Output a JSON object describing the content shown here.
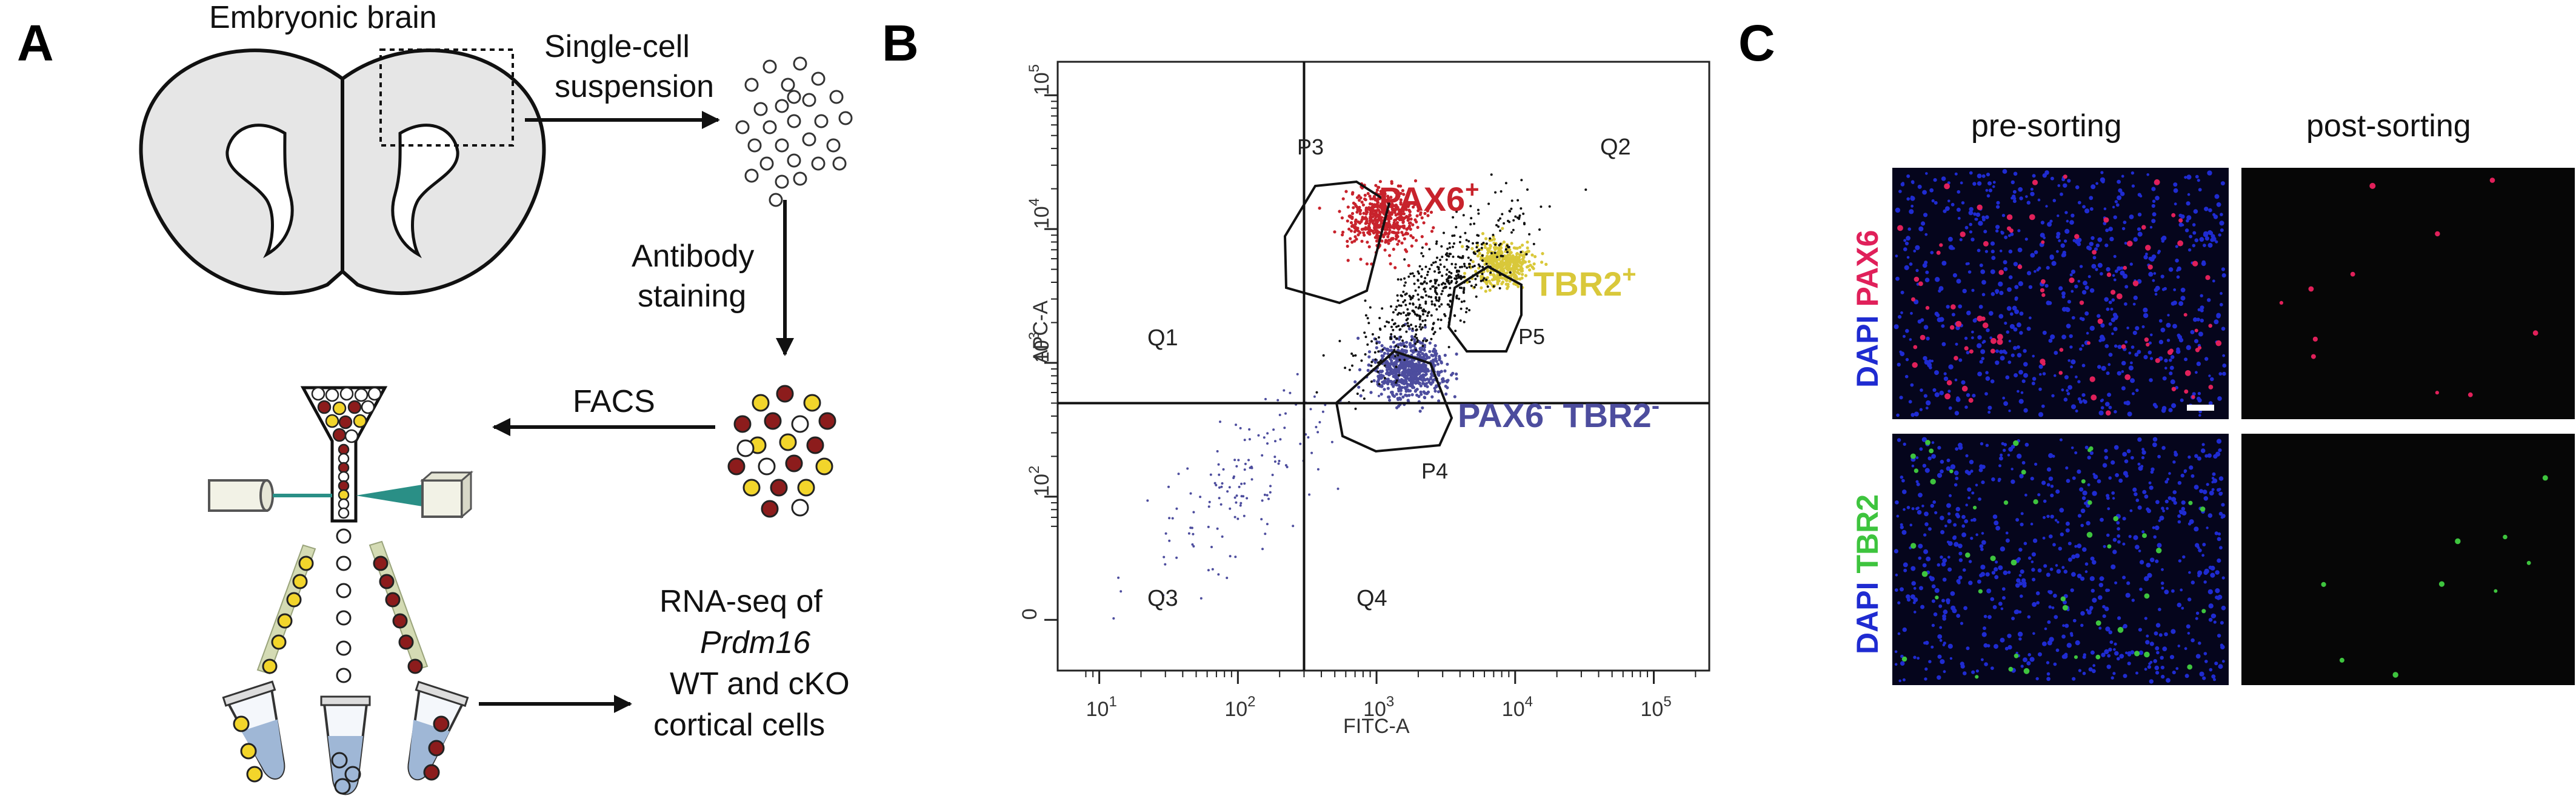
{
  "panels": {
    "a": {
      "letter": "A",
      "brain_label": "Embryonic brain",
      "step1_line1": "Single-cell",
      "step1_line2": "suspension",
      "step2_line1": "Antibody",
      "step2_line2": "staining",
      "step3": "FACS",
      "result_line1": "RNA-seq of",
      "result_line2": "Prdm16",
      "result_line3": "WT and cKO",
      "result_line4": "cortical cells"
    },
    "b": {
      "letter": "B",
      "xlabel": "FITC-A",
      "ylabel": "APC-A",
      "quadrants": [
        "Q1",
        "Q2",
        "Q3",
        "Q4"
      ],
      "gates": [
        "P3",
        "P4",
        "P5"
      ],
      "populations": {
        "pax6_base": "PAX6",
        "pax6_sup": "+",
        "tbr2_base": "TBR2",
        "tbr2_sup": "+",
        "dn_base1": "PAX6",
        "dn_sup1": "-",
        "dn_base2": "TBR2",
        "dn_sup2": "-"
      }
    },
    "c": {
      "letter": "C",
      "col1": "pre-sorting",
      "col2": "post-sorting",
      "row1_dapi": "DAPI",
      "row1_marker": "PAX6",
      "row2_dapi": "DAPI",
      "row2_marker": "TBR2"
    }
  },
  "colors": {
    "pax6": "#c8232c",
    "tbr2": "#d9c83a",
    "negative": "#4d4d9e",
    "dapi": "#1f2bd1",
    "tbr2_stain": "#3ec43e",
    "pax6_stain": "#e0205a",
    "cell_red": "#8c1c1c",
    "cell_yellow": "#f2d52b",
    "laser": "#2a8f86"
  },
  "chart_data": {
    "type": "scatter",
    "title": "",
    "xlabel": "FITC-A",
    "ylabel": "APC-A",
    "xscale": "log",
    "yscale": "log",
    "x_ticks": [
      "10^1",
      "10^2",
      "10^3",
      "10^4",
      "10^5"
    ],
    "y_ticks": [
      "0",
      "10^2",
      "10^3",
      "10^4",
      "10^5"
    ],
    "quadrant_gate": {
      "x": 300,
      "y": 500
    },
    "series": [
      {
        "name": "PAX6+",
        "gate": "P3",
        "x_center": 1100,
        "y_center": 12000
      },
      {
        "name": "TBR2+",
        "gate": "P5",
        "x_center": 8000,
        "y_center": 5500
      },
      {
        "name": "PAX6- TBR2-",
        "gate": "P4",
        "x_center": 1700,
        "y_center": 900
      },
      {
        "name": "",
        "gate": "",
        "x_center": 2800,
        "y_center": 3500
      },
      {
        "name": "",
        "gate": "",
        "x_center": 120,
        "y_center": 140
      }
    ]
  }
}
